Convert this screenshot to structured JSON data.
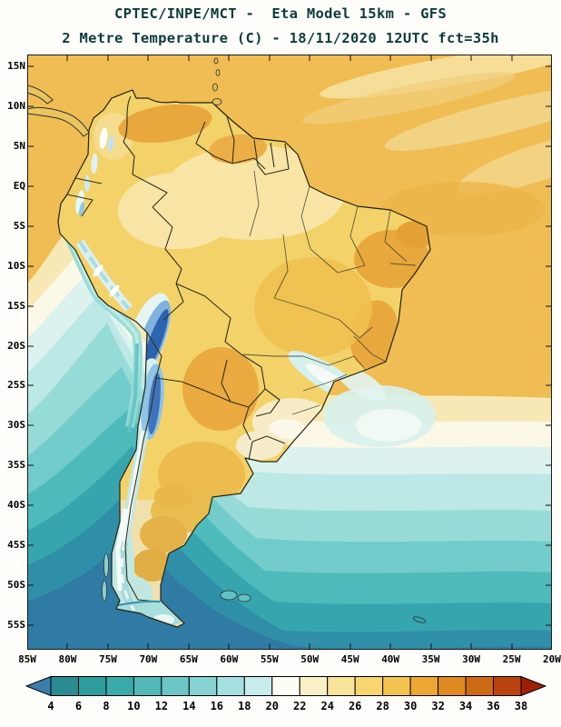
{
  "header": {
    "title_line1": "CPTEC/INPE/MCT -  Eta Model 15km - GFS",
    "title_line2": "2 Metre Temperature (C) - 18/11/2020 12UTC fct=35h",
    "title_color": "#0d3b3b"
  },
  "map": {
    "lat_labels": [
      "15N",
      "10N",
      "5N",
      "EQ",
      "5S",
      "10S",
      "15S",
      "20S",
      "25S",
      "30S",
      "35S",
      "40S",
      "45S",
      "50S",
      "55S"
    ],
    "lon_labels": [
      "85W",
      "80W",
      "75W",
      "70W",
      "65W",
      "60W",
      "55W",
      "50W",
      "45W",
      "40W",
      "35W",
      "30W",
      "25W",
      "20W"
    ]
  },
  "colorbar": {
    "tick_labels": [
      "4",
      "6",
      "8",
      "10",
      "12",
      "14",
      "16",
      "18",
      "20",
      "22",
      "24",
      "26",
      "28",
      "30",
      "32",
      "34",
      "36",
      "38"
    ],
    "colors": [
      "#3d7dad",
      "#2a8c92",
      "#2d9d9d",
      "#3aa9a9",
      "#52b8b8",
      "#6cc6c6",
      "#87d2d2",
      "#a5e0e0",
      "#c6ecec",
      "#fdfdf6",
      "#faf0c8",
      "#f9e49c",
      "#f7d671",
      "#f3c44f",
      "#eca832",
      "#df8b21",
      "#cd6a14",
      "#b9430d",
      "#9c1f06"
    ]
  }
}
